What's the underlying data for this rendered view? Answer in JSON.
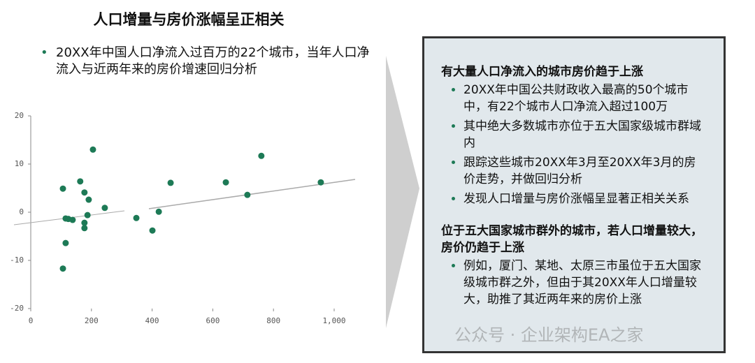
{
  "title": "人口增量与房价涨幅呈正相关",
  "intro": "20XX年中国人口净流入过百万的22个城市，当年人口净流入与近两年来的房价增速回归分析",
  "chart_data": {
    "type": "scatter",
    "color": "#1d7a56",
    "x": [
      106,
      106,
      115,
      115,
      124,
      138,
      163,
      177,
      177,
      177,
      187,
      191,
      205,
      244,
      348,
      401,
      422,
      461,
      643,
      714,
      760,
      956
    ],
    "values": [
      4.9,
      -11.7,
      -1.3,
      -6.4,
      -1.4,
      -1.6,
      6.4,
      4.1,
      -2.2,
      -3.3,
      -0.6,
      2.6,
      13.0,
      0.9,
      -1.2,
      -3.8,
      0.1,
      6.1,
      6.2,
      3.6,
      11.7,
      6.2
    ],
    "xlim": [
      0,
      1000
    ],
    "ylim": [
      -20,
      20
    ],
    "xticks": [
      0,
      200,
      400,
      600,
      800,
      {
        "value": 1000,
        "label": "1,000"
      }
    ],
    "yticks": [
      -20,
      -10,
      0,
      10,
      20
    ]
  },
  "panel": {
    "sections": [
      {
        "heading": "有大量人口净流入的城市房价趋于上涨",
        "items": [
          "20XX年中国公共财政收入最高的50个城市中，有22个城市人口净流入超过100万",
          "其中绝大多数城市亦位于五大国家级城市群域内",
          "跟踪这些城市20XX年3月至20XX年3月的房价走势，并做回归分析",
          "发现人口增量与房价涨幅呈显著正相关关系"
        ]
      },
      {
        "heading": "位于五大国家城市群外的城市，若人口增量较大，房价仍趋于上涨",
        "items": [
          "例如，厦门、某地、太原三市虽位于五大国家级城市群之外，但由于其20XX年人口增量较大，助推了其近两年来的房价上涨"
        ]
      }
    ]
  },
  "watermark": "公众号 · 企业架构EA之家"
}
